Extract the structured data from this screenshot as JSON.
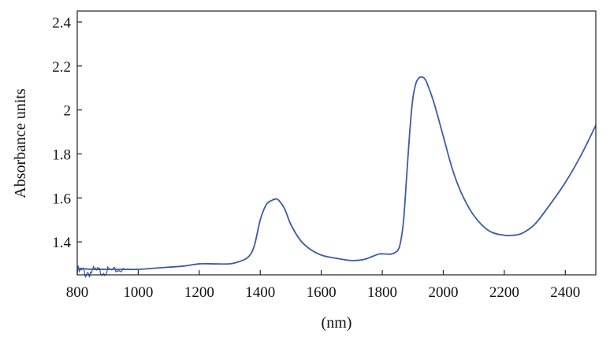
{
  "chart_data": {
    "type": "line",
    "title": "",
    "xlabel": "(nm)",
    "ylabel": "Absorbance units",
    "xlim": [
      800,
      2500
    ],
    "ylim": [
      1.25,
      2.45
    ],
    "xticks": [
      800,
      1000,
      1200,
      1400,
      1600,
      1800,
      2000,
      2200,
      2400
    ],
    "yticks": [
      1.4,
      1.6,
      1.8,
      2.0,
      2.2,
      2.4
    ],
    "ytick_labels": [
      "1.4",
      "1.6",
      "1.8",
      "2",
      "2.2",
      "2.4"
    ],
    "grid": false,
    "legend": "none",
    "series": [
      {
        "color": "#3b5ba5",
        "x": [
          800,
          850,
          900,
          950,
          1000,
          1050,
          1100,
          1150,
          1200,
          1250,
          1300,
          1330,
          1360,
          1380,
          1400,
          1420,
          1440,
          1450,
          1460,
          1480,
          1500,
          1530,
          1560,
          1600,
          1650,
          1700,
          1740,
          1770,
          1790,
          1810,
          1830,
          1850,
          1860,
          1870,
          1880,
          1890,
          1900,
          1910,
          1920,
          1930,
          1940,
          1950,
          1970,
          2000,
          2030,
          2060,
          2100,
          2150,
          2200,
          2230,
          2260,
          2300,
          2350,
          2400,
          2450,
          2500
        ],
        "y": [
          1.28,
          1.275,
          1.275,
          1.275,
          1.275,
          1.28,
          1.285,
          1.29,
          1.3,
          1.3,
          1.3,
          1.31,
          1.33,
          1.38,
          1.5,
          1.57,
          1.59,
          1.595,
          1.59,
          1.55,
          1.48,
          1.41,
          1.37,
          1.34,
          1.325,
          1.315,
          1.32,
          1.335,
          1.345,
          1.345,
          1.345,
          1.36,
          1.4,
          1.5,
          1.7,
          1.9,
          2.05,
          2.12,
          2.145,
          2.15,
          2.14,
          2.11,
          2.03,
          1.88,
          1.73,
          1.62,
          1.52,
          1.45,
          1.43,
          1.43,
          1.44,
          1.48,
          1.57,
          1.67,
          1.79,
          1.93
        ]
      }
    ]
  }
}
